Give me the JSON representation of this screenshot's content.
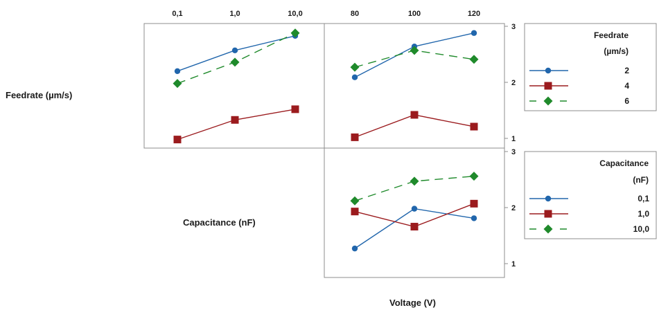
{
  "colors": {
    "blue": "#2166ac",
    "red": "#9b1b1e",
    "green": "#1f8a2b",
    "frame": "#8c8c8c"
  },
  "labels": {
    "feedrate_row": "Feedrate (µm/s)",
    "capacitance_row": "Capacitance (nF)",
    "voltage_x": "Voltage (V)"
  },
  "legends": {
    "feedrate": {
      "title1": "Feedrate",
      "title2": "(µm/s)",
      "entries": [
        {
          "label": "2",
          "color": "#2166ac",
          "marker": "circle",
          "dash": "solid"
        },
        {
          "label": "4",
          "color": "#9b1b1e",
          "marker": "square",
          "dash": "solid"
        },
        {
          "label": "6",
          "color": "#1f8a2b",
          "marker": "diamond",
          "dash": "dashed"
        }
      ]
    },
    "capacitance": {
      "title1": "Capacitance",
      "title2": "(nF)",
      "entries": [
        {
          "label": "0,1",
          "color": "#2166ac",
          "marker": "circle",
          "dash": "solid"
        },
        {
          "label": "1,0",
          "color": "#9b1b1e",
          "marker": "square",
          "dash": "solid"
        },
        {
          "label": "10,0",
          "color": "#1f8a2b",
          "marker": "diamond",
          "dash": "dashed"
        }
      ]
    }
  },
  "chart_data": [
    {
      "type": "line",
      "panel": "feedrate-vs-capacitance",
      "x": [
        "0,1",
        "1,0",
        "10,0"
      ],
      "ylim": [
        0.9,
        3.1
      ],
      "yticks": [],
      "series": [
        {
          "name": "2",
          "values": [
            2.2,
            2.57,
            2.83
          ]
        },
        {
          "name": "4",
          "values": [
            0.98,
            1.33,
            1.52
          ]
        },
        {
          "name": "6",
          "values": [
            1.98,
            2.36,
            2.88
          ]
        }
      ]
    },
    {
      "type": "line",
      "panel": "feedrate-vs-voltage",
      "x": [
        "80",
        "100",
        "120"
      ],
      "ylim": [
        0.9,
        3.1
      ],
      "yticks": [
        "1",
        "2",
        "3"
      ],
      "series": [
        {
          "name": "2",
          "values": [
            2.09,
            2.64,
            2.88
          ]
        },
        {
          "name": "4",
          "values": [
            1.02,
            1.42,
            1.21
          ]
        },
        {
          "name": "6",
          "values": [
            2.27,
            2.57,
            2.41
          ]
        }
      ]
    },
    {
      "type": "line",
      "panel": "capacitance-vs-voltage",
      "x": [
        "80",
        "100",
        "120"
      ],
      "ylim": [
        0.9,
        3.1
      ],
      "yticks": [
        "1",
        "2",
        "3"
      ],
      "series": [
        {
          "name": "0,1",
          "values": [
            1.27,
            1.98,
            1.81
          ]
        },
        {
          "name": "1,0",
          "values": [
            1.93,
            1.66,
            2.07
          ]
        },
        {
          "name": "10,0",
          "values": [
            2.12,
            2.47,
            2.56
          ]
        }
      ]
    }
  ]
}
